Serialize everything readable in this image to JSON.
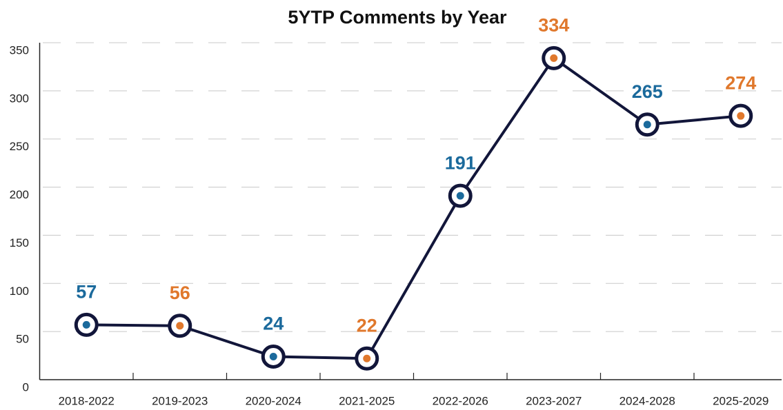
{
  "chart_data": {
    "type": "line",
    "title": "5YTP Comments by Year",
    "categories": [
      "2018-2022",
      "2019-2023",
      "2020-2024",
      "2021-2025",
      "2022-2026",
      "2023-2027",
      "2024-2028",
      "2025-2029"
    ],
    "series": [
      {
        "name": "Comments",
        "color": "#12163a",
        "values": [
          57,
          56,
          24,
          22,
          191,
          334,
          265,
          274
        ]
      }
    ],
    "point_colors": [
      "#1b6a9c",
      "#e0782c",
      "#1b6a9c",
      "#e0782c",
      "#1b6a9c",
      "#e0782c",
      "#1b6a9c",
      "#e0782c"
    ],
    "ylim": [
      0,
      350
    ],
    "yticks": [
      0,
      50,
      100,
      150,
      200,
      250,
      300,
      350
    ],
    "grid": true
  }
}
